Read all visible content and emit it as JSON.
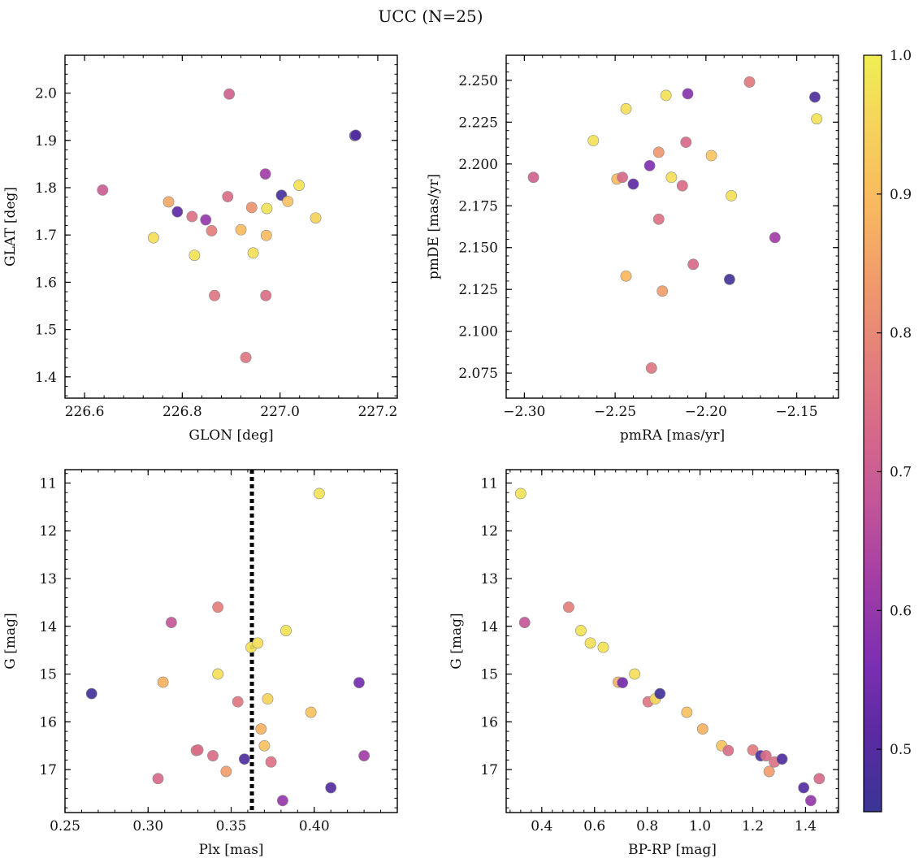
{
  "title": "UCC (N=25)",
  "colorbar": {
    "range": [
      0.455,
      1.0
    ],
    "ticks": [
      0.5,
      0.6,
      0.7,
      0.8,
      0.9,
      1.0
    ],
    "tick_labels": [
      "0.5",
      "0.6",
      "0.7",
      "0.8",
      "0.9",
      "1.0"
    ],
    "colormap": "plasma-truncated",
    "stops": [
      "#3a3595",
      "#5a2aa2",
      "#7e2fb2",
      "#a13ca6",
      "#c0549a",
      "#d6688a",
      "#e47f7b",
      "#f09b6b",
      "#f8b860",
      "#f6d15c",
      "#f0ee53"
    ]
  },
  "chart_data": [
    {
      "type": "scatter",
      "xlabel": "GLON [deg]",
      "ylabel": "GLAT [deg]",
      "xlim": [
        226.56,
        227.24
      ],
      "ylim": [
        1.355,
        2.08
      ],
      "xticks": [
        226.6,
        226.8,
        227.0,
        227.2
      ],
      "xtick_labels": [
        "226.6",
        "226.8",
        "227.0",
        "227.2"
      ],
      "yticks": [
        1.4,
        1.5,
        1.6,
        1.7,
        1.8,
        1.9,
        2.0
      ],
      "ytick_labels": [
        "1.4",
        "1.5",
        "1.6",
        "1.7",
        "1.8",
        "1.9",
        "2.0"
      ],
      "x": [
        226.637,
        226.741,
        226.772,
        226.79,
        226.82,
        226.825,
        226.848,
        226.86,
        226.866,
        226.893,
        226.896,
        226.92,
        226.93,
        226.942,
        226.945,
        226.97,
        226.971,
        226.972,
        226.973,
        227.003,
        227.016,
        227.039,
        227.073,
        227.153,
        227.155
      ],
      "y": [
        1.795,
        1.694,
        1.77,
        1.749,
        1.739,
        1.657,
        1.732,
        1.709,
        1.572,
        1.781,
        1.998,
        1.711,
        1.441,
        1.758,
        1.662,
        1.829,
        1.572,
        1.699,
        1.756,
        1.784,
        1.771,
        1.805,
        1.736,
        1.91,
        1.911
      ],
      "c": [
        0.7,
        0.97,
        0.86,
        0.52,
        0.75,
        0.98,
        0.6,
        0.78,
        0.76,
        0.74,
        0.71,
        0.9,
        0.76,
        0.82,
        0.97,
        0.62,
        0.74,
        0.9,
        0.98,
        0.48,
        0.91,
        0.98,
        0.95,
        0.47,
        0.5
      ]
    },
    {
      "type": "scatter",
      "xlabel": "pmRA [mas/yr]",
      "ylabel": "pmDE [mas/yr]",
      "xlim": [
        -2.31,
        -2.127
      ],
      "ylim": [
        2.06,
        2.265
      ],
      "xticks": [
        -2.3,
        -2.25,
        -2.2,
        -2.15
      ],
      "xtick_labels": [
        "−2.30",
        "−2.25",
        "−2.20",
        "−2.15"
      ],
      "yticks": [
        2.075,
        2.1,
        2.125,
        2.15,
        2.175,
        2.2,
        2.225,
        2.25
      ],
      "ytick_labels": [
        "2.075",
        "2.100",
        "2.125",
        "2.150",
        "2.175",
        "2.200",
        "2.225",
        "2.250"
      ],
      "x": [
        -2.295,
        -2.262,
        -2.249,
        -2.246,
        -2.244,
        -2.244,
        -2.24,
        -2.231,
        -2.23,
        -2.226,
        -2.226,
        -2.224,
        -2.222,
        -2.219,
        -2.213,
        -2.211,
        -2.21,
        -2.207,
        -2.197,
        -2.187,
        -2.186,
        -2.176,
        -2.162,
        -2.14,
        -2.139
      ],
      "y": [
        2.192,
        2.214,
        2.191,
        2.192,
        2.233,
        2.133,
        2.188,
        2.199,
        2.078,
        2.207,
        2.167,
        2.124,
        2.241,
        2.192,
        2.187,
        2.213,
        2.242,
        2.14,
        2.205,
        2.131,
        2.181,
        2.249,
        2.156,
        2.24,
        2.227
      ],
      "c": [
        0.71,
        0.98,
        0.9,
        0.73,
        0.97,
        0.89,
        0.52,
        0.57,
        0.76,
        0.83,
        0.75,
        0.84,
        0.98,
        0.97,
        0.74,
        0.73,
        0.58,
        0.73,
        0.92,
        0.47,
        0.97,
        0.77,
        0.62,
        0.49,
        0.98
      ]
    },
    {
      "type": "scatter",
      "xlabel": "Plx [mas]",
      "ylabel": "G [mag]",
      "xlim": [
        0.25,
        0.45
      ],
      "ylim": [
        17.9,
        10.72
      ],
      "y_inverted": true,
      "xticks": [
        0.25,
        0.3,
        0.35,
        0.4
      ],
      "xtick_labels": [
        "0.25",
        "0.30",
        "0.35",
        "0.40"
      ],
      "yticks": [
        11,
        12,
        13,
        14,
        15,
        16,
        17
      ],
      "ytick_labels": [
        "11",
        "12",
        "13",
        "14",
        "15",
        "16",
        "17"
      ],
      "vline": {
        "x": 0.3625,
        "style": "dotted"
      },
      "x": [
        0.266,
        0.306,
        0.309,
        0.314,
        0.329,
        0.33,
        0.339,
        0.342,
        0.342,
        0.347,
        0.354,
        0.358,
        0.362,
        0.366,
        0.368,
        0.37,
        0.372,
        0.374,
        0.381,
        0.383,
        0.398,
        0.403,
        0.41,
        0.427,
        0.43
      ],
      "y": [
        15.41,
        17.19,
        15.17,
        13.92,
        16.6,
        16.59,
        16.71,
        15.0,
        13.6,
        17.04,
        15.58,
        16.78,
        14.44,
        14.35,
        16.15,
        16.5,
        15.52,
        16.84,
        17.65,
        14.09,
        15.8,
        11.22,
        17.38,
        15.18,
        16.71
      ],
      "c": [
        0.47,
        0.73,
        0.88,
        0.68,
        0.77,
        0.74,
        0.74,
        0.97,
        0.78,
        0.84,
        0.76,
        0.49,
        0.98,
        0.97,
        0.88,
        0.91,
        0.95,
        0.75,
        0.6,
        0.98,
        0.91,
        0.98,
        0.5,
        0.55,
        0.62
      ]
    },
    {
      "type": "scatter",
      "xlabel": "BP-RP [mag]",
      "ylabel": "G [mag]",
      "xlim": [
        0.265,
        1.525
      ],
      "ylim": [
        17.9,
        10.72
      ],
      "y_inverted": true,
      "xticks": [
        0.4,
        0.6,
        0.8,
        1.0,
        1.2,
        1.4
      ],
      "xtick_labels": [
        "0.4",
        "0.6",
        "0.8",
        "1.0",
        "1.2",
        "1.4"
      ],
      "yticks": [
        11,
        12,
        13,
        14,
        15,
        16,
        17
      ],
      "ytick_labels": [
        "11",
        "12",
        "13",
        "14",
        "15",
        "16",
        "17"
      ],
      "x": [
        0.32,
        0.335,
        0.502,
        0.548,
        0.584,
        0.633,
        0.69,
        0.706,
        0.752,
        0.803,
        0.83,
        0.848,
        0.95,
        1.01,
        1.082,
        1.107,
        1.2,
        1.23,
        1.25,
        1.262,
        1.282,
        1.311,
        1.393,
        1.42,
        1.452
      ],
      "y": [
        11.22,
        13.92,
        13.6,
        14.09,
        14.35,
        14.44,
        15.17,
        15.18,
        15.0,
        15.58,
        15.52,
        15.41,
        15.8,
        16.15,
        16.5,
        16.6,
        16.59,
        16.71,
        16.71,
        17.04,
        16.84,
        16.78,
        17.38,
        17.65,
        17.19
      ],
      "c": [
        0.98,
        0.68,
        0.78,
        0.98,
        0.97,
        0.98,
        0.88,
        0.55,
        0.97,
        0.76,
        0.95,
        0.47,
        0.91,
        0.88,
        0.91,
        0.74,
        0.77,
        0.5,
        0.74,
        0.84,
        0.75,
        0.49,
        0.5,
        0.6,
        0.73
      ]
    }
  ]
}
